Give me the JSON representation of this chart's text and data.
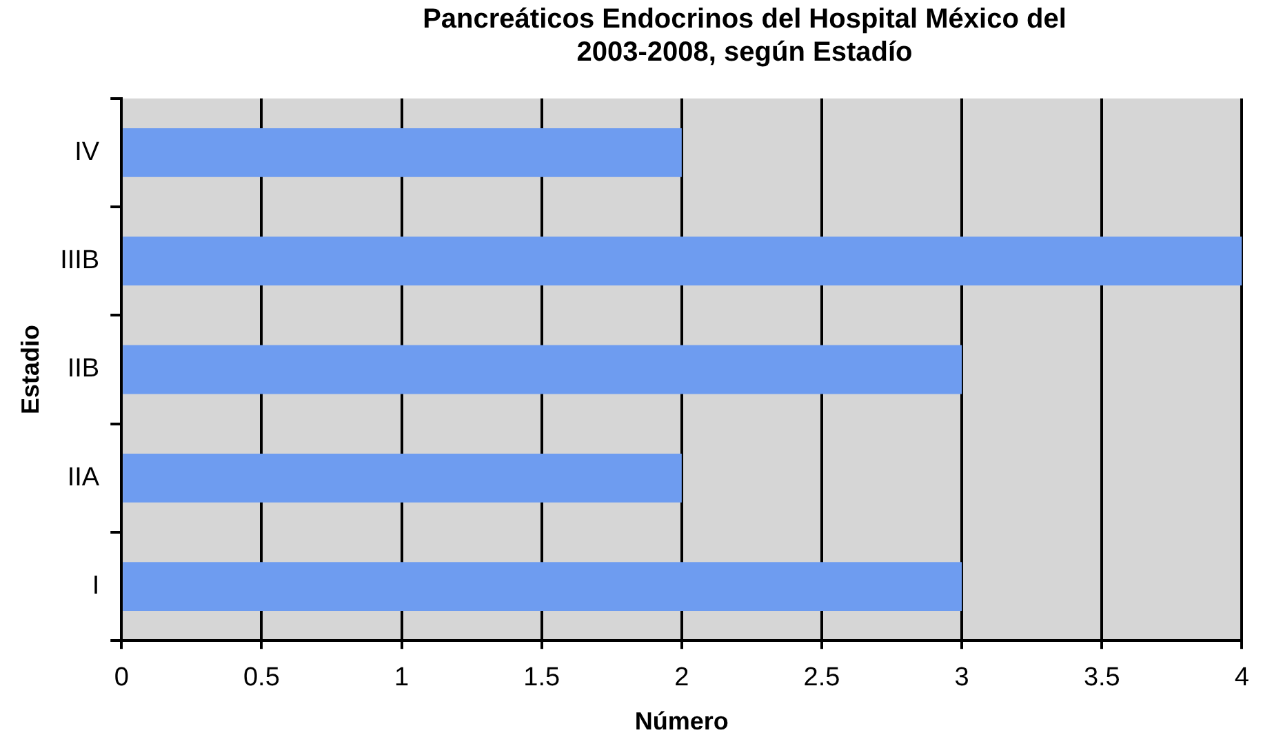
{
  "chart_data": {
    "type": "bar",
    "orientation": "horizontal",
    "title": "Pancreáticos Endocrinos del Hospital México del 2003-2008, según Estadío",
    "xlabel": "Número",
    "ylabel": "Estadio",
    "categories": [
      "IV",
      "IIIB",
      "IIB",
      "IIA",
      "I"
    ],
    "values": [
      2,
      4,
      3,
      2,
      3
    ],
    "color": "#6e9cf0",
    "xlim": [
      0,
      4
    ],
    "xticks": [
      0,
      0.5,
      1,
      1.5,
      2,
      2.5,
      3,
      3.5,
      4
    ],
    "grid": "x",
    "legend": false
  }
}
